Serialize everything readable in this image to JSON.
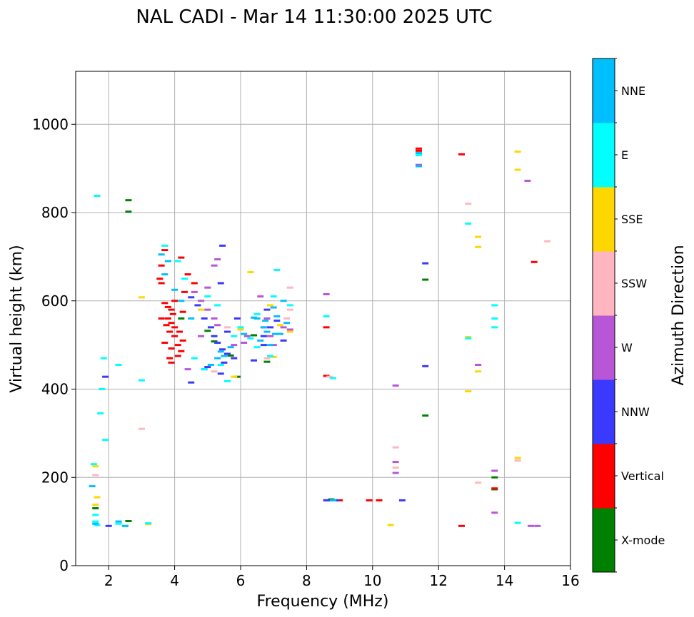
{
  "chart_data": {
    "type": "scatter",
    "title": "NAL CADI - Mar 14 11:30:00 2025 UTC",
    "xlabel": "Frequency (MHz)",
    "ylabel": "Virtual height (km)",
    "xlim": [
      1,
      16
    ],
    "ylim": [
      0,
      1120
    ],
    "xticks": [
      2,
      4,
      6,
      8,
      10,
      12,
      14,
      16
    ],
    "yticks": [
      0,
      200,
      400,
      600,
      800,
      1000
    ],
    "grid": true,
    "colorbar": {
      "label": "Azimuth Direction",
      "categories": [
        {
          "name": "X-mode",
          "color": "#008000"
        },
        {
          "name": "Vertical",
          "color": "#ff0000"
        },
        {
          "name": "NNW",
          "color": "#3a3aff"
        },
        {
          "name": "W",
          "color": "#b856d8"
        },
        {
          "name": "SSW",
          "color": "#ffb6c1"
        },
        {
          "name": "SSE",
          "color": "#ffd700"
        },
        {
          "name": "E",
          "color": "#00ffff"
        },
        {
          "name": "NNE",
          "color": "#00bfff"
        }
      ]
    },
    "series": [
      {
        "name": "X-mode",
        "points": [
          [
            2.6,
            828
          ],
          [
            2.6,
            802
          ],
          [
            4.2,
            560
          ],
          [
            5.0,
            532
          ],
          [
            6.4,
            522
          ],
          [
            5.7,
            476
          ],
          [
            5.2,
            508
          ],
          [
            8.7,
            148
          ],
          [
            8.75,
            150
          ],
          [
            11.6,
            648
          ],
          [
            11.6,
            340
          ],
          [
            13.7,
            200
          ],
          [
            13.7,
            173
          ],
          [
            2.6,
            101
          ],
          [
            1.6,
            130
          ],
          [
            6.8,
            462
          ],
          [
            5.9,
            428
          ]
        ]
      },
      {
        "name": "Vertical",
        "points": [
          [
            3.6,
            640
          ],
          [
            3.7,
            595
          ],
          [
            3.8,
            586
          ],
          [
            3.9,
            580
          ],
          [
            3.95,
            570
          ],
          [
            3.8,
            560
          ],
          [
            3.9,
            550
          ],
          [
            4.0,
            540
          ],
          [
            3.85,
            530
          ],
          [
            4.0,
            520
          ],
          [
            4.1,
            500
          ],
          [
            3.9,
            492
          ],
          [
            4.2,
            486
          ],
          [
            4.1,
            475
          ],
          [
            3.85,
            470
          ],
          [
            4.0,
            600
          ],
          [
            3.75,
            545
          ],
          [
            3.6,
            560
          ],
          [
            3.7,
            505
          ],
          [
            4.15,
            530
          ],
          [
            4.25,
            510
          ],
          [
            3.7,
            715
          ],
          [
            4.2,
            698
          ],
          [
            4.4,
            660
          ],
          [
            4.6,
            640
          ],
          [
            4.3,
            620
          ],
          [
            3.55,
            650
          ],
          [
            3.6,
            680
          ],
          [
            3.9,
            460
          ],
          [
            4.25,
            575
          ],
          [
            11.4,
            945
          ],
          [
            11.4,
            940
          ],
          [
            12.7,
            932
          ],
          [
            8.6,
            540
          ],
          [
            8.6,
            430
          ],
          [
            9.0,
            148
          ],
          [
            9.9,
            148
          ],
          [
            10.2,
            148
          ],
          [
            14.9,
            688
          ],
          [
            13.7,
            175
          ],
          [
            12.7,
            90
          ]
        ]
      },
      {
        "name": "NNW",
        "points": [
          [
            4.5,
            608
          ],
          [
            4.7,
            590
          ],
          [
            4.9,
            560
          ],
          [
            5.1,
            540
          ],
          [
            5.2,
            520
          ],
          [
            5.3,
            505
          ],
          [
            5.45,
            490
          ],
          [
            5.6,
            480
          ],
          [
            5.8,
            470
          ],
          [
            5.5,
            460
          ],
          [
            5.0,
            450
          ],
          [
            4.9,
            445
          ],
          [
            5.6,
            530
          ],
          [
            5.9,
            560
          ],
          [
            6.4,
            465
          ],
          [
            6.7,
            520
          ],
          [
            6.9,
            540
          ],
          [
            7.1,
            555
          ],
          [
            7.3,
            510
          ],
          [
            6.8,
            580
          ],
          [
            6.7,
            500
          ],
          [
            5.45,
            725
          ],
          [
            5.4,
            640
          ],
          [
            4.5,
            415
          ],
          [
            1.9,
            428
          ],
          [
            2.0,
            90
          ],
          [
            5.4,
            435
          ],
          [
            8.6,
            148
          ],
          [
            8.9,
            148
          ],
          [
            11.6,
            685
          ],
          [
            11.6,
            452
          ],
          [
            10.9,
            148
          ]
        ]
      },
      {
        "name": "W",
        "points": [
          [
            4.6,
            620
          ],
          [
            4.8,
            600
          ],
          [
            5.0,
            580
          ],
          [
            5.2,
            560
          ],
          [
            5.3,
            545
          ],
          [
            5.0,
            630
          ],
          [
            5.2,
            680
          ],
          [
            5.3,
            694
          ],
          [
            6.1,
            505
          ],
          [
            6.2,
            520
          ],
          [
            6.7,
            540
          ],
          [
            6.9,
            520
          ],
          [
            7.0,
            500
          ],
          [
            7.3,
            540
          ],
          [
            7.5,
            535
          ],
          [
            6.8,
            560
          ],
          [
            5.8,
            500
          ],
          [
            4.8,
            520
          ],
          [
            8.6,
            615
          ],
          [
            10.7,
            408
          ],
          [
            10.7,
            235
          ],
          [
            10.7,
            210
          ],
          [
            13.2,
            455
          ],
          [
            13.7,
            215
          ],
          [
            13.7,
            120
          ],
          [
            14.7,
            872
          ],
          [
            14.8,
            90
          ],
          [
            15.0,
            90
          ],
          [
            11.4,
            908
          ],
          [
            4.4,
            445
          ],
          [
            6.6,
            610
          ]
        ]
      },
      {
        "name": "SSW",
        "points": [
          [
            7.5,
            630
          ],
          [
            7.4,
            560
          ],
          [
            5.6,
            540
          ],
          [
            3.0,
            310
          ],
          [
            10.7,
            268
          ],
          [
            10.7,
            222
          ],
          [
            12.9,
            820
          ],
          [
            13.2,
            188
          ],
          [
            14.4,
            238
          ],
          [
            15.3,
            735
          ],
          [
            7.5,
            580
          ],
          [
            6.8,
            470
          ],
          [
            5.2,
            440
          ],
          [
            1.6,
            205
          ],
          [
            8.7,
            428
          ]
        ]
      },
      {
        "name": "SSE",
        "points": [
          [
            3.0,
            608
          ],
          [
            6.3,
            665
          ],
          [
            7.5,
            530
          ],
          [
            7.0,
            473
          ],
          [
            12.9,
            518
          ],
          [
            13.2,
            745
          ],
          [
            13.2,
            722
          ],
          [
            13.2,
            440
          ],
          [
            12.9,
            395
          ],
          [
            14.4,
            938
          ],
          [
            14.4,
            897
          ],
          [
            14.4,
            244
          ],
          [
            10.55,
            92
          ],
          [
            1.6,
            225
          ],
          [
            1.65,
            155
          ],
          [
            1.6,
            138
          ],
          [
            3.2,
            94
          ],
          [
            5.8,
            428
          ],
          [
            4.8,
            580
          ],
          [
            6.0,
            535
          ],
          [
            7.2,
            545
          ],
          [
            6.9,
            590
          ]
        ]
      },
      {
        "name": "E",
        "points": [
          [
            1.65,
            838
          ],
          [
            1.85,
            470
          ],
          [
            1.8,
            400
          ],
          [
            1.75,
            345
          ],
          [
            1.9,
            285
          ],
          [
            2.3,
            455
          ],
          [
            3.7,
            725
          ],
          [
            4.1,
            690
          ],
          [
            4.3,
            650
          ],
          [
            5.0,
            610
          ],
          [
            5.3,
            590
          ],
          [
            5.8,
            520
          ],
          [
            6.0,
            540
          ],
          [
            6.3,
            515
          ],
          [
            6.5,
            495
          ],
          [
            6.9,
            475
          ],
          [
            7.1,
            670
          ],
          [
            7.5,
            590
          ],
          [
            5.4,
            455
          ],
          [
            4.9,
            445
          ],
          [
            4.6,
            470
          ],
          [
            8.6,
            565
          ],
          [
            8.8,
            425
          ],
          [
            12.9,
            775
          ],
          [
            13.7,
            590
          ],
          [
            13.7,
            560
          ],
          [
            13.7,
            540
          ],
          [
            14.4,
            97
          ],
          [
            1.55,
            230
          ],
          [
            1.6,
            115
          ],
          [
            1.6,
            100
          ],
          [
            1.65,
            92
          ],
          [
            2.3,
            95
          ],
          [
            2.5,
            90
          ],
          [
            3.0,
            420
          ],
          [
            3.2,
            96
          ],
          [
            6.5,
            570
          ],
          [
            7.0,
            610
          ],
          [
            11.4,
            930
          ],
          [
            12.9,
            515
          ],
          [
            5.6,
            418
          ]
        ]
      },
      {
        "name": "NNE",
        "points": [
          [
            3.6,
            705
          ],
          [
            3.8,
            690
          ],
          [
            3.7,
            660
          ],
          [
            4.0,
            625
          ],
          [
            4.2,
            600
          ],
          [
            4.5,
            560
          ],
          [
            5.1,
            455
          ],
          [
            5.4,
            485
          ],
          [
            5.5,
            475
          ],
          [
            5.7,
            495
          ],
          [
            6.1,
            525
          ],
          [
            6.5,
            560
          ],
          [
            6.7,
            540
          ],
          [
            6.8,
            530
          ],
          [
            7.0,
            585
          ],
          [
            7.1,
            565
          ],
          [
            7.4,
            550
          ],
          [
            6.6,
            510
          ],
          [
            6.9,
            500
          ],
          [
            7.2,
            525
          ],
          [
            7.3,
            600
          ],
          [
            8.8,
            148
          ],
          [
            11.4,
            905
          ],
          [
            11.4,
            935
          ],
          [
            1.5,
            180
          ],
          [
            2.3,
            100
          ],
          [
            2.5,
            90
          ],
          [
            1.6,
            95
          ],
          [
            6.4,
            562
          ],
          [
            7.05,
            525
          ],
          [
            6.75,
            555
          ],
          [
            5.3,
            470
          ]
        ]
      }
    ]
  }
}
